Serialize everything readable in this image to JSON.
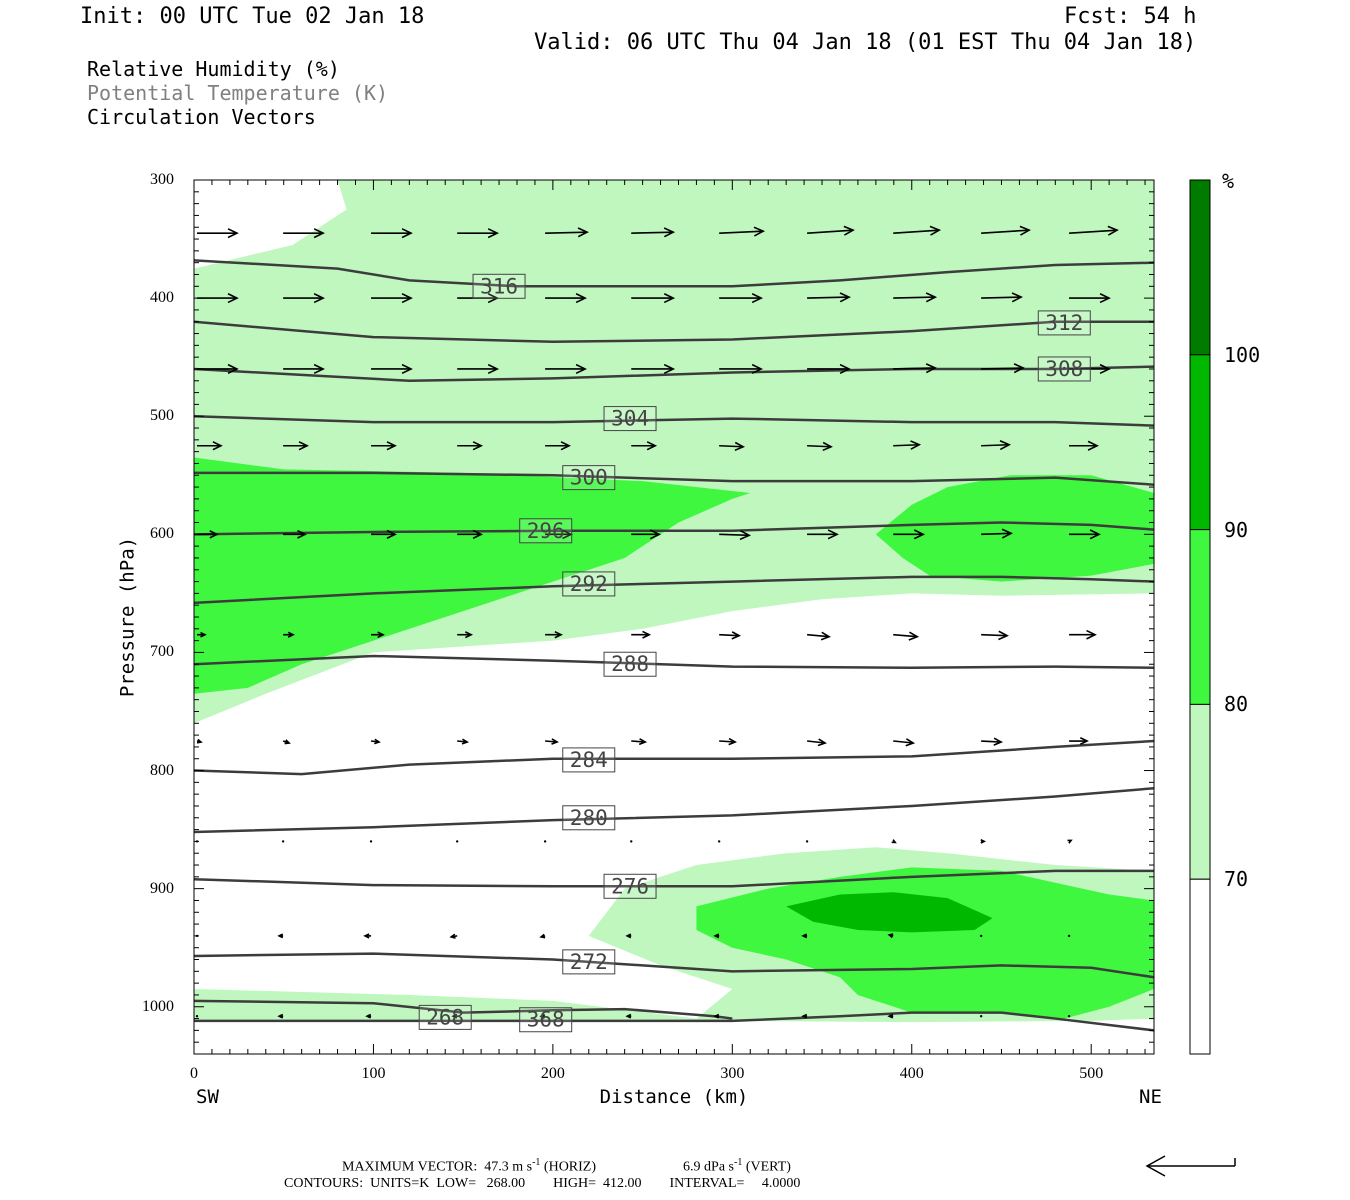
{
  "header": {
    "init": "Init: 00 UTC Tue 02 Jan 18",
    "fcst": "Fcst:   54 h",
    "valid": "Valid: 06 UTC Thu 04 Jan 18 (01 EST Thu 04 Jan 18)"
  },
  "legend": {
    "rh": "Relative Humidity (%)",
    "theta": "Potential Temperature (K)",
    "vectors": "Circulation Vectors"
  },
  "colors": {
    "rh70": "#bff7bf",
    "rh80": "#3ff73f",
    "rh90": "#00b800",
    "rh100": "#007b00",
    "contour": "#3c3c3c",
    "theta_legend": "#808080"
  },
  "colorbar": {
    "unit": "%",
    "levels": [
      "70",
      "80",
      "90",
      "100"
    ]
  },
  "axes": {
    "xlabel": "Distance (km)",
    "ylabel": "Pressure (hPa)",
    "left_end": "SW",
    "right_end": "NE",
    "x_ticks": [
      "0",
      "100",
      "200",
      "300",
      "400",
      "500"
    ],
    "y_ticks": [
      "300",
      "400",
      "500",
      "600",
      "700",
      "800",
      "900",
      "1000"
    ]
  },
  "footer": {
    "max_vector_label": "MAXIMUM VECTOR:",
    "horiz_value": "47.3",
    "horiz_unit": "m s",
    "horiz_tag": "(HORIZ)",
    "vert_value": "6.9",
    "vert_unit": "dPa s",
    "vert_tag": "(VERT)",
    "exponent": "-1",
    "contours": "CONTOURS:  UNITS=K  LOW=   268.00        HIGH=  412.00        INTERVAL=     4.0000"
  },
  "chart_data": {
    "type": "cross-section",
    "xlim": [
      0,
      535
    ],
    "ylim": [
      300,
      1040
    ],
    "y_inverted": true,
    "rh_levels": [
      70,
      80,
      90,
      100
    ],
    "rh_regions": [
      {
        "level": 70,
        "points": [
          [
            0,
            300
          ],
          [
            80,
            300
          ],
          [
            90,
            300
          ],
          [
            380,
            300
          ],
          [
            410,
            300
          ],
          [
            535,
            300
          ],
          [
            535,
            1010
          ],
          [
            500,
            1012
          ],
          [
            400,
            1013
          ],
          [
            300,
            1012
          ],
          [
            200,
            1012
          ],
          [
            0,
            1012
          ]
        ]
      },
      {
        "level": 0,
        "points": [
          [
            0,
            300
          ],
          [
            80,
            300
          ],
          [
            85,
            325
          ],
          [
            55,
            355
          ],
          [
            0,
            375
          ],
          [
            0,
            300
          ]
        ]
      },
      {
        "level": 0,
        "points": [
          [
            0,
            760
          ],
          [
            40,
            735
          ],
          [
            100,
            700
          ],
          [
            200,
            690
          ],
          [
            250,
            680
          ],
          [
            300,
            665
          ],
          [
            350,
            655
          ],
          [
            400,
            650
          ],
          [
            450,
            652
          ],
          [
            535,
            650
          ],
          [
            535,
            885
          ],
          [
            480,
            880
          ],
          [
            420,
            870
          ],
          [
            380,
            865
          ],
          [
            330,
            870
          ],
          [
            280,
            880
          ],
          [
            240,
            900
          ],
          [
            220,
            940
          ],
          [
            260,
            965
          ],
          [
            300,
            985
          ],
          [
            280,
            1010
          ],
          [
            200,
            995
          ],
          [
            120,
            990
          ],
          [
            0,
            985
          ]
        ]
      },
      {
        "level": 80,
        "points": [
          [
            0,
            535
          ],
          [
            50,
            545
          ],
          [
            150,
            548
          ],
          [
            250,
            555
          ],
          [
            310,
            565
          ],
          [
            300,
            570
          ],
          [
            270,
            590
          ],
          [
            240,
            620
          ],
          [
            200,
            640
          ],
          [
            150,
            665
          ],
          [
            100,
            690
          ],
          [
            60,
            710
          ],
          [
            30,
            730
          ],
          [
            0,
            735
          ]
        ]
      },
      {
        "level": 80,
        "points": [
          [
            380,
            600
          ],
          [
            400,
            575
          ],
          [
            420,
            560
          ],
          [
            455,
            550
          ],
          [
            500,
            550
          ],
          [
            535,
            565
          ],
          [
            535,
            625
          ],
          [
            500,
            635
          ],
          [
            450,
            640
          ],
          [
            410,
            635
          ],
          [
            395,
            620
          ]
        ]
      },
      {
        "level": 80,
        "points": [
          [
            280,
            915
          ],
          [
            320,
            900
          ],
          [
            360,
            890
          ],
          [
            400,
            882
          ],
          [
            450,
            885
          ],
          [
            480,
            895
          ],
          [
            510,
            905
          ],
          [
            535,
            910
          ],
          [
            535,
            985
          ],
          [
            510,
            1000
          ],
          [
            485,
            1010
          ],
          [
            450,
            1005
          ],
          [
            400,
            1005
          ],
          [
            370,
            990
          ],
          [
            360,
            975
          ],
          [
            330,
            960
          ],
          [
            300,
            950
          ],
          [
            280,
            935
          ]
        ]
      },
      {
        "level": 90,
        "points": [
          [
            330,
            915
          ],
          [
            360,
            905
          ],
          [
            390,
            903
          ],
          [
            420,
            908
          ],
          [
            445,
            925
          ],
          [
            435,
            935
          ],
          [
            400,
            937
          ],
          [
            370,
            935
          ],
          [
            345,
            928
          ]
        ]
      }
    ],
    "theta_contours": [
      {
        "label": "316",
        "points": [
          [
            0,
            368
          ],
          [
            80,
            375
          ],
          [
            120,
            385
          ],
          [
            180,
            390
          ],
          [
            240,
            390
          ],
          [
            300,
            390
          ],
          [
            360,
            385
          ],
          [
            420,
            378
          ],
          [
            480,
            372
          ],
          [
            535,
            370
          ]
        ],
        "label_at": [
          170,
          390
        ]
      },
      {
        "label": "312",
        "points": [
          [
            0,
            420
          ],
          [
            100,
            433
          ],
          [
            200,
            437
          ],
          [
            300,
            435
          ],
          [
            400,
            428
          ],
          [
            480,
            420
          ],
          [
            535,
            420
          ]
        ],
        "label_at": [
          485,
          421
        ]
      },
      {
        "label": "308",
        "points": [
          [
            0,
            460
          ],
          [
            60,
            465
          ],
          [
            120,
            470
          ],
          [
            200,
            468
          ],
          [
            300,
            463
          ],
          [
            400,
            460
          ],
          [
            480,
            460
          ],
          [
            535,
            458
          ]
        ],
        "label_at": [
          485,
          460
        ]
      },
      {
        "label": "304",
        "points": [
          [
            0,
            500
          ],
          [
            100,
            505
          ],
          [
            200,
            505
          ],
          [
            300,
            502
          ],
          [
            400,
            505
          ],
          [
            480,
            505
          ],
          [
            535,
            508
          ]
        ],
        "label_at": [
          243,
          502
        ]
      },
      {
        "label": "300",
        "points": [
          [
            0,
            548
          ],
          [
            100,
            548
          ],
          [
            200,
            550
          ],
          [
            300,
            555
          ],
          [
            400,
            555
          ],
          [
            480,
            552
          ],
          [
            535,
            558
          ]
        ],
        "label_at": [
          220,
          552
        ]
      },
      {
        "label": "296",
        "points": [
          [
            0,
            600
          ],
          [
            100,
            598
          ],
          [
            200,
            597
          ],
          [
            300,
            597
          ],
          [
            400,
            592
          ],
          [
            450,
            590
          ],
          [
            500,
            592
          ],
          [
            535,
            596
          ]
        ],
        "label_at": [
          196,
          597
        ]
      },
      {
        "label": "292",
        "points": [
          [
            0,
            658
          ],
          [
            100,
            650
          ],
          [
            200,
            644
          ],
          [
            300,
            640
          ],
          [
            400,
            636
          ],
          [
            450,
            636
          ],
          [
            500,
            638
          ],
          [
            535,
            640
          ]
        ],
        "label_at": [
          220,
          642
        ]
      },
      {
        "label": "288",
        "points": [
          [
            0,
            710
          ],
          [
            100,
            703
          ],
          [
            200,
            707
          ],
          [
            300,
            712
          ],
          [
            400,
            713
          ],
          [
            480,
            712
          ],
          [
            535,
            713
          ]
        ],
        "label_at": [
          243,
          710
        ]
      },
      {
        "label": "284",
        "points": [
          [
            0,
            800
          ],
          [
            60,
            803
          ],
          [
            120,
            795
          ],
          [
            200,
            790
          ],
          [
            300,
            790
          ],
          [
            400,
            788
          ],
          [
            480,
            780
          ],
          [
            535,
            775
          ]
        ],
        "label_at": [
          220,
          791
        ]
      },
      {
        "label": "280",
        "points": [
          [
            0,
            852
          ],
          [
            100,
            848
          ],
          [
            200,
            842
          ],
          [
            300,
            838
          ],
          [
            400,
            830
          ],
          [
            480,
            822
          ],
          [
            535,
            815
          ]
        ],
        "label_at": [
          220,
          840
        ]
      },
      {
        "label": "276",
        "points": [
          [
            0,
            892
          ],
          [
            100,
            897
          ],
          [
            200,
            898
          ],
          [
            300,
            898
          ],
          [
            400,
            890
          ],
          [
            480,
            885
          ],
          [
            535,
            885
          ]
        ],
        "label_at": [
          243,
          898
        ]
      },
      {
        "label": "272",
        "points": [
          [
            0,
            957
          ],
          [
            100,
            955
          ],
          [
            200,
            960
          ],
          [
            300,
            970
          ],
          [
            400,
            968
          ],
          [
            450,
            965
          ],
          [
            500,
            967
          ],
          [
            535,
            975
          ]
        ],
        "label_at": [
          220,
          962
        ]
      },
      {
        "label": "268",
        "points": [
          [
            0,
            995
          ],
          [
            100,
            997
          ],
          [
            150,
            1005
          ],
          [
            200,
            1003
          ],
          [
            240,
            1002
          ],
          [
            290,
            1008
          ],
          [
            300,
            1010
          ]
        ],
        "label_at": [
          140,
          1009
        ]
      },
      {
        "label": "368",
        "points": [
          [
            0,
            1012
          ],
          [
            100,
            1012
          ],
          [
            200,
            1012
          ],
          [
            300,
            1012
          ],
          [
            360,
            1008
          ],
          [
            400,
            1005
          ],
          [
            450,
            1005
          ],
          [
            480,
            1010
          ],
          [
            535,
            1020
          ]
        ],
        "label_at": [
          196,
          1011
        ]
      }
    ],
    "vector_rows": [
      {
        "p": 345,
        "dx": [
          40,
          40,
          40,
          40,
          42,
          42,
          44,
          46,
          46,
          48,
          48
        ],
        "dy": [
          0,
          0,
          0,
          0,
          -1,
          -1,
          -2,
          -3,
          -3,
          -3,
          -3
        ]
      },
      {
        "p": 400,
        "dx": [
          40,
          40,
          40,
          40,
          40,
          42,
          42,
          42,
          42,
          40,
          40
        ],
        "dy": [
          0,
          0,
          0,
          0,
          0,
          0,
          0,
          -1,
          -1,
          -1,
          0
        ]
      },
      {
        "p": 460,
        "dx": [
          40,
          40,
          40,
          40,
          40,
          42,
          42,
          42,
          42,
          42,
          40
        ],
        "dy": [
          0,
          0,
          0,
          0,
          0,
          0,
          0,
          0,
          -1,
          -1,
          0
        ]
      },
      {
        "p": 525,
        "dx": [
          24,
          24,
          24,
          24,
          24,
          24,
          24,
          24,
          26,
          28,
          28
        ],
        "dy": [
          0,
          0,
          0,
          0,
          0,
          0,
          1,
          1,
          -1,
          -1,
          0
        ]
      },
      {
        "p": 600,
        "dx": [
          20,
          22,
          24,
          24,
          26,
          28,
          30,
          30,
          30,
          30,
          30
        ],
        "dy": [
          0,
          0,
          0,
          0,
          0,
          0,
          1,
          0,
          0,
          -1,
          0
        ]
      },
      {
        "p": 685,
        "dx": [
          8,
          10,
          12,
          14,
          16,
          18,
          20,
          22,
          24,
          26,
          26
        ],
        "dy": [
          0,
          0,
          0,
          0,
          0,
          0,
          1,
          2,
          2,
          1,
          0
        ]
      },
      {
        "p": 775,
        "dx": [
          4,
          6,
          8,
          10,
          12,
          14,
          16,
          18,
          20,
          20,
          18
        ],
        "dy": [
          1,
          2,
          1,
          1,
          1,
          1,
          1,
          2,
          2,
          1,
          0
        ]
      },
      {
        "p": 860,
        "dx": [
          0,
          0,
          0,
          0,
          0,
          0,
          0,
          1,
          2,
          3,
          2
        ],
        "dy": [
          1,
          1,
          1,
          1,
          1,
          1,
          1,
          1,
          1,
          0,
          -1
        ]
      },
      {
        "p": 940,
        "dx": [
          0,
          -4,
          -6,
          -6,
          -4,
          -4,
          -4,
          -4,
          -4,
          0,
          0
        ],
        "dy": [
          0,
          0,
          0,
          1,
          1,
          0,
          0,
          0,
          -1,
          0,
          0
        ]
      },
      {
        "p": 1008,
        "dx": [
          0,
          -4,
          -4,
          -4,
          -4,
          -4,
          -4,
          -4,
          -4,
          0,
          0
        ],
        "dy": [
          0,
          0,
          0,
          0,
          0,
          0,
          0,
          0,
          0,
          0,
          0
        ]
      }
    ],
    "vector_x": [
      0,
      48,
      97,
      145,
      194,
      242,
      291,
      340,
      388,
      437,
      486
    ]
  }
}
